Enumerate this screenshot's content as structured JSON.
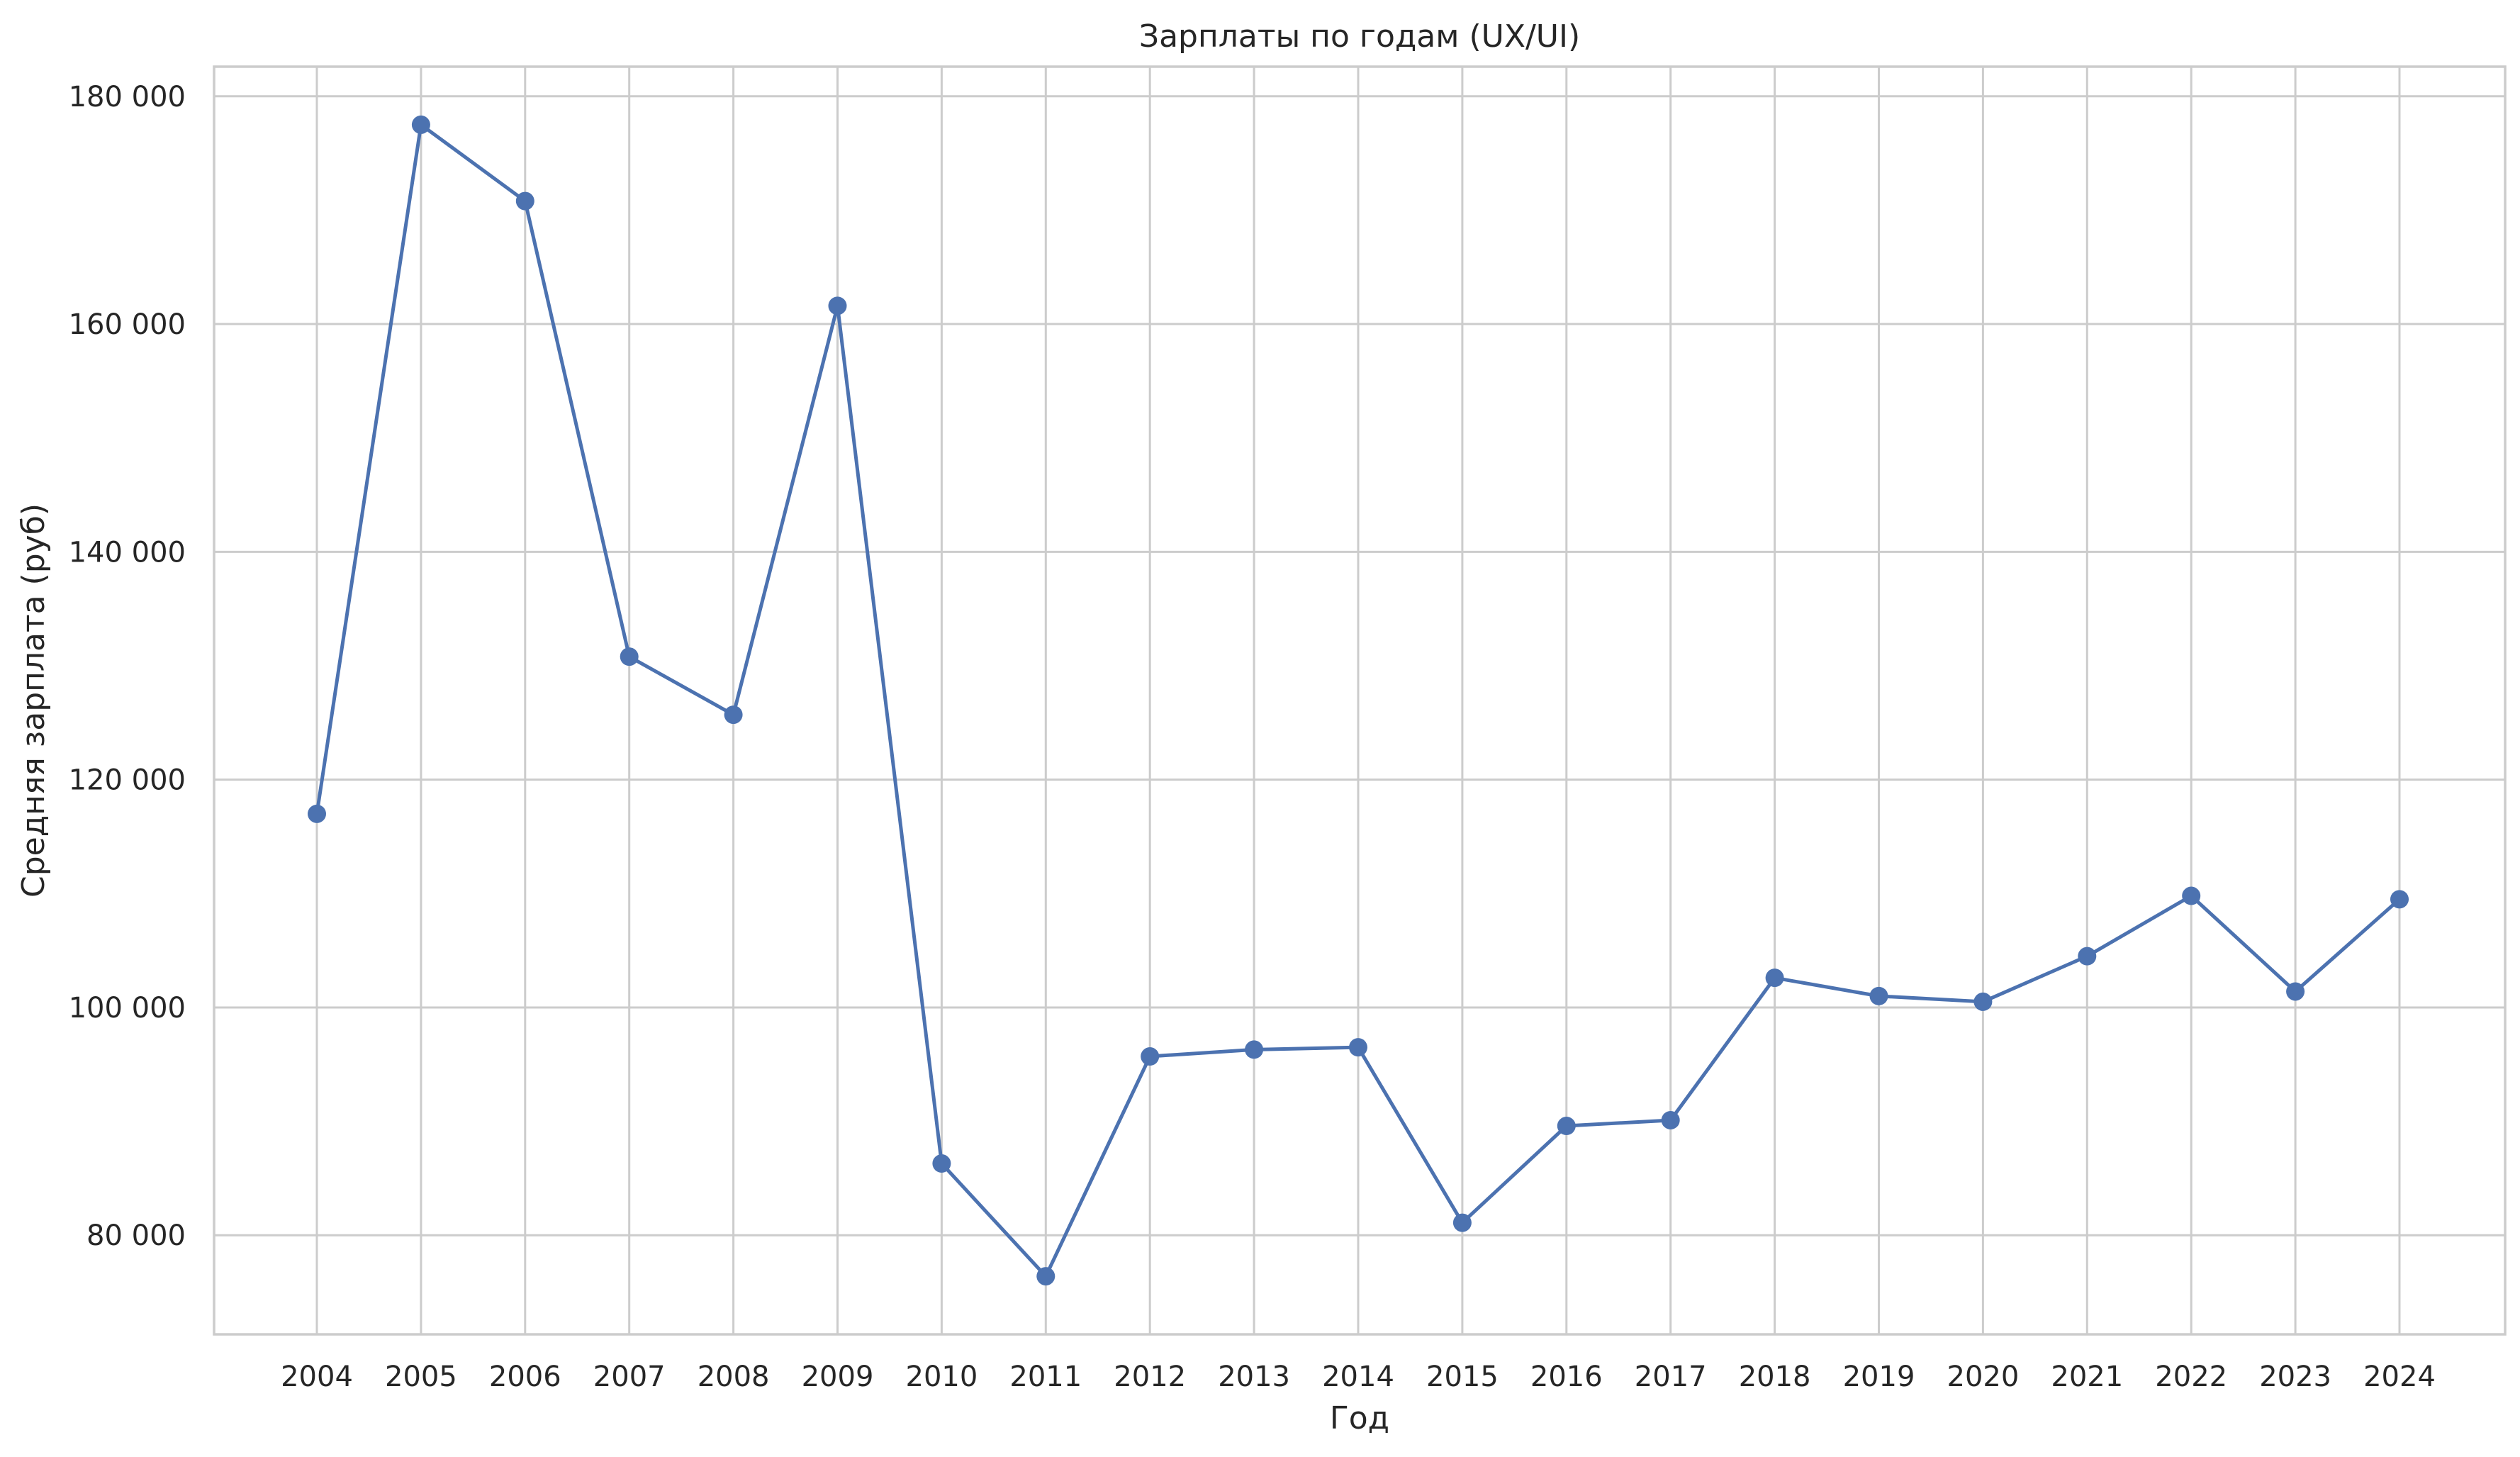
{
  "chart_data": {
    "type": "line",
    "title": "Зарплаты по годам (UX/UI)",
    "xlabel": "Год",
    "ylabel": "Средняя зарплата (руб)",
    "x": [
      "2004",
      "2005",
      "2006",
      "2007",
      "2008",
      "2009",
      "2010",
      "2011",
      "2012",
      "2013",
      "2014",
      "2015",
      "2016",
      "2017",
      "2018",
      "2019",
      "2020",
      "2021",
      "2022",
      "2023",
      "2024"
    ],
    "y": [
      117000,
      177500,
      170800,
      130800,
      125700,
      161600,
      86300,
      76400,
      95700,
      96300,
      96500,
      81100,
      89600,
      90100,
      102600,
      101000,
      100500,
      104500,
      109800,
      101400,
      109500
    ],
    "ylim": [
      71300,
      182600
    ],
    "yticks": [
      80000,
      100000,
      120000,
      140000,
      160000,
      180000
    ],
    "ytick_labels": [
      "80 000",
      "100 000",
      "120 000",
      "140 000",
      "160 000",
      "180 000"
    ],
    "grid": true,
    "marker": "circle",
    "color": "#4c72b0",
    "grid_color": "#cccccc",
    "text_color": "#262626"
  }
}
